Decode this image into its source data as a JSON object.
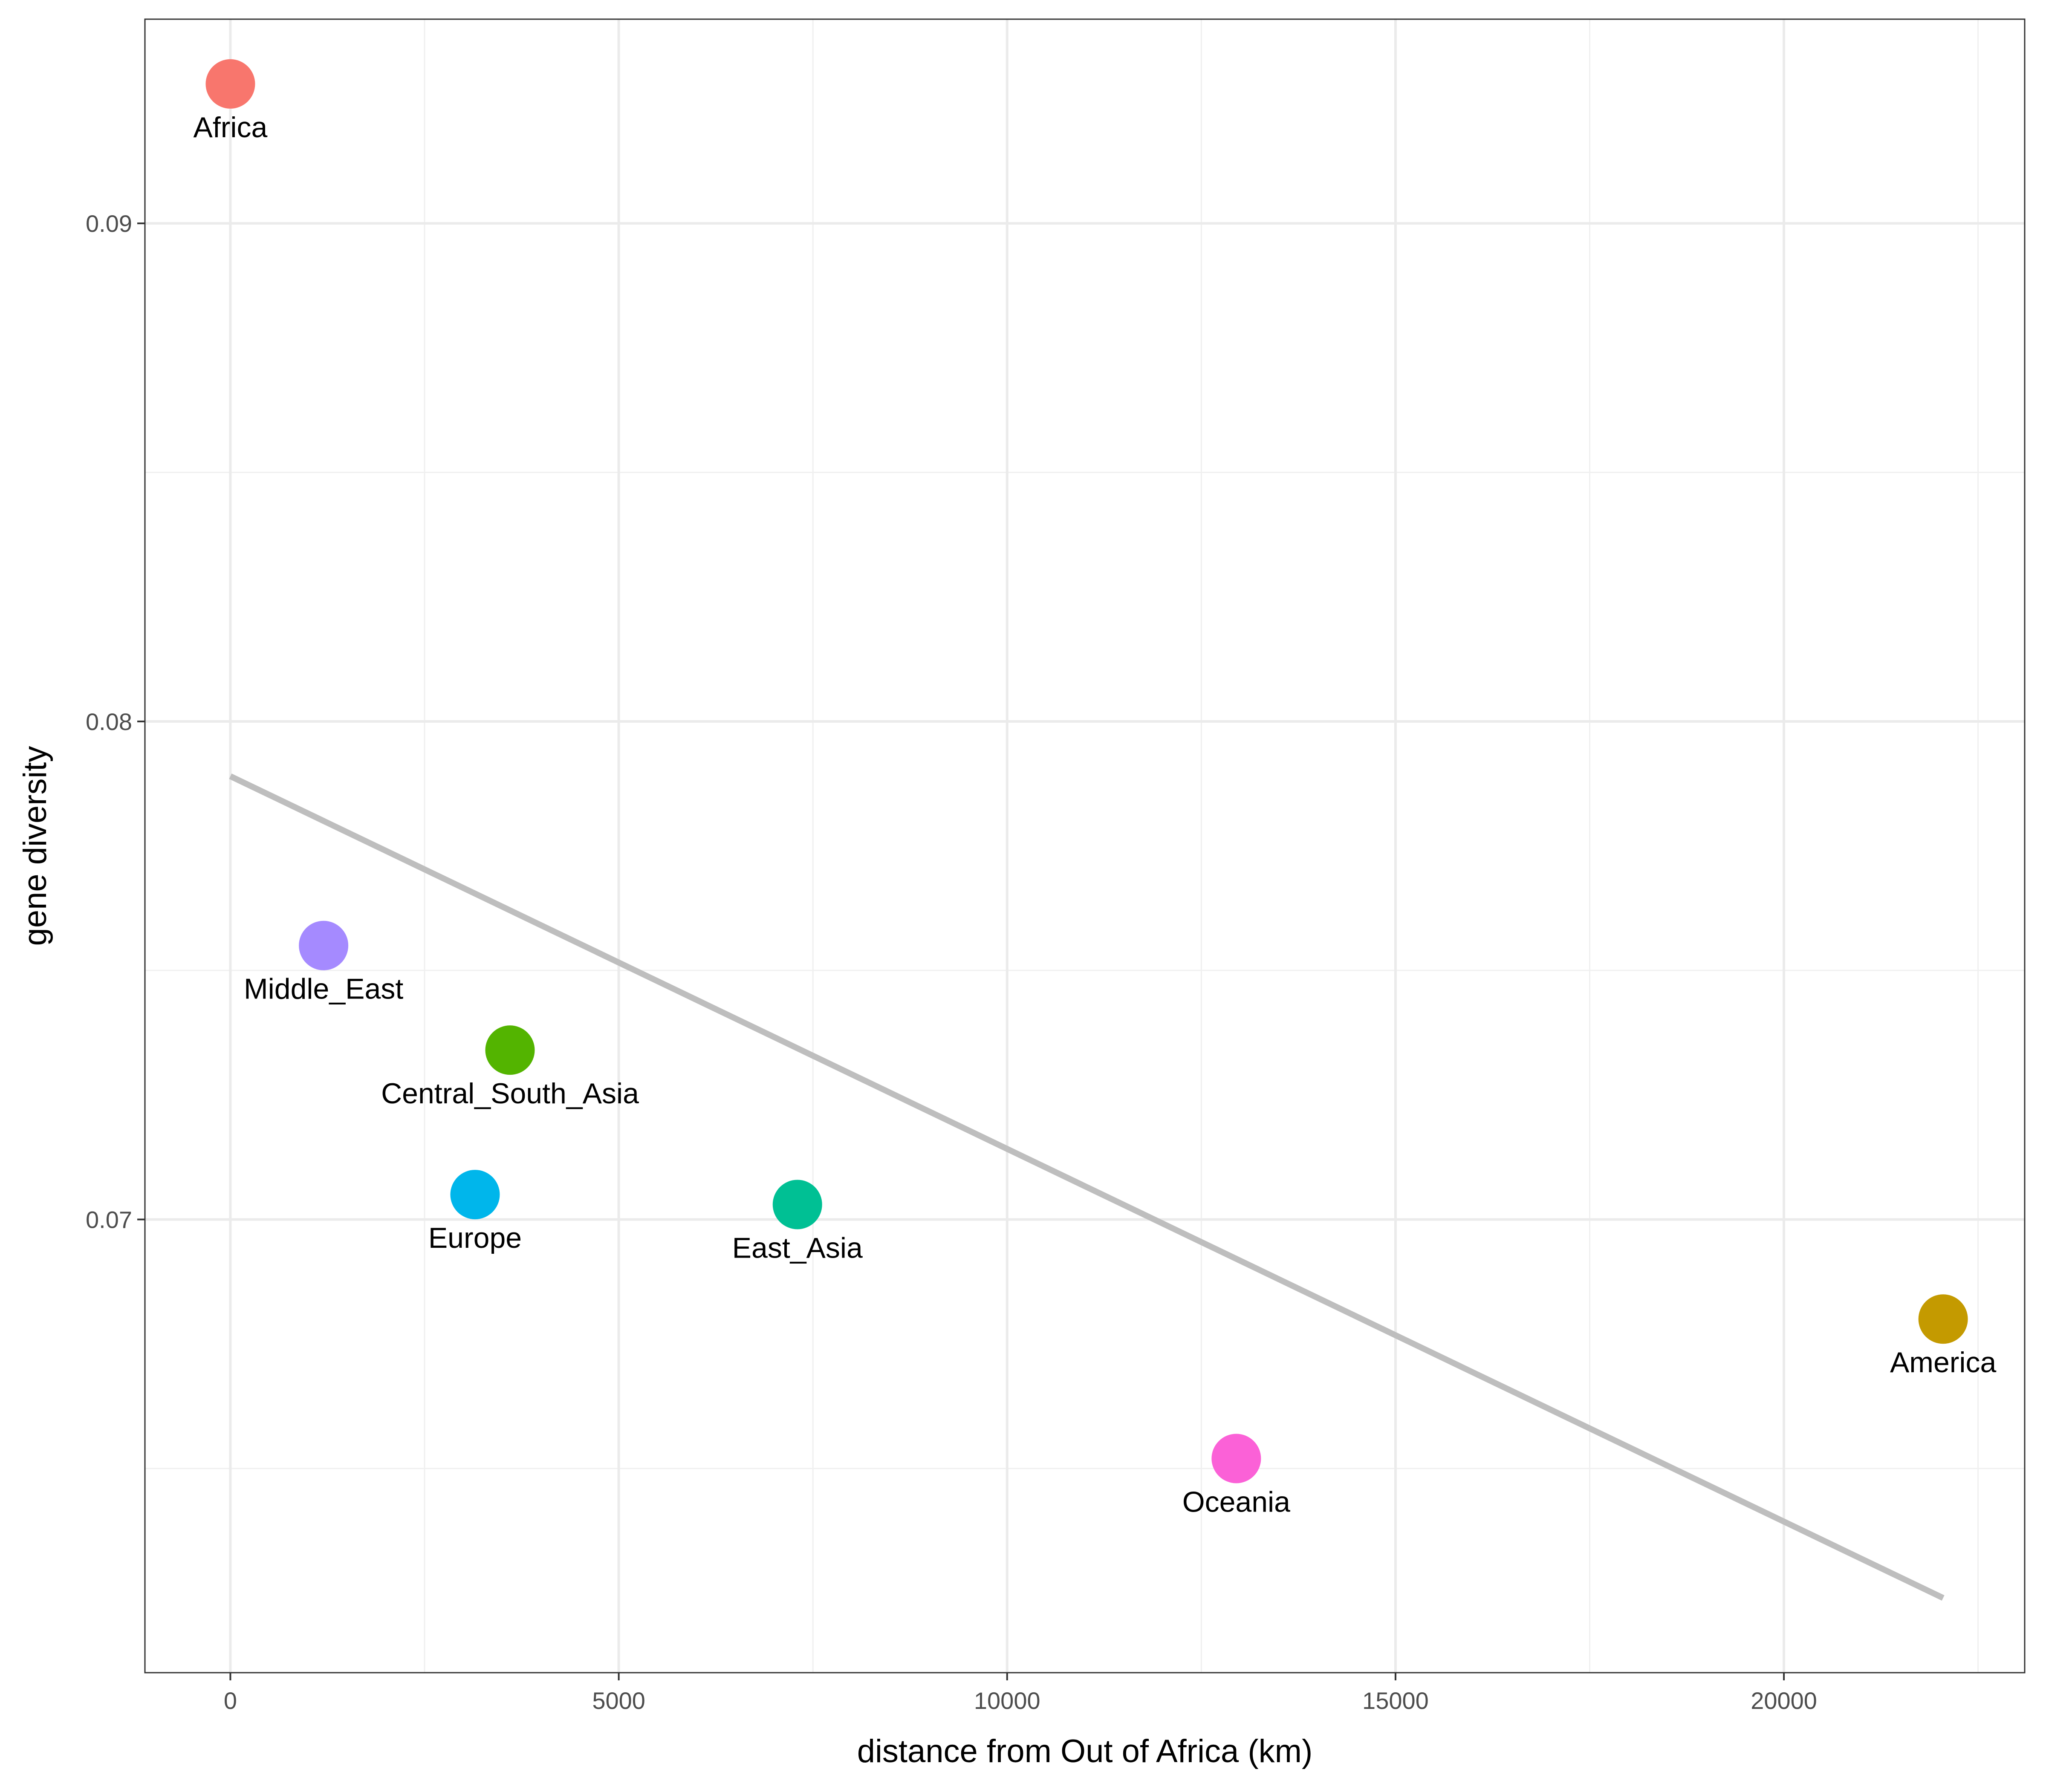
{
  "chart_data": {
    "type": "scatter",
    "title": "",
    "xlabel": "distance from Out of Africa (km)",
    "ylabel": "gene diversity",
    "xlim": [
      -1100,
      23100
    ],
    "ylim": [
      0.0609,
      0.0941
    ],
    "x_ticks": [
      0,
      5000,
      10000,
      15000,
      20000
    ],
    "x_tick_labels": [
      "0",
      "5000",
      "10000",
      "15000",
      "20000"
    ],
    "y_ticks": [
      0.07,
      0.08,
      0.09
    ],
    "y_tick_labels": [
      "0.07",
      "0.08",
      "0.09"
    ],
    "grid": true,
    "legend": "none",
    "points": [
      {
        "label": "Africa",
        "x": 0,
        "y": 0.0928,
        "color": "#F8766D"
      },
      {
        "label": "Middle_East",
        "x": 1200,
        "y": 0.0755,
        "color": "#A58AFF"
      },
      {
        "label": "Central_South_Asia",
        "x": 3600,
        "y": 0.0734,
        "color": "#53B400"
      },
      {
        "label": "Europe",
        "x": 3150,
        "y": 0.0705,
        "color": "#00B6EB"
      },
      {
        "label": "East_Asia",
        "x": 7300,
        "y": 0.0703,
        "color": "#00C094"
      },
      {
        "label": "Oceania",
        "x": 12950,
        "y": 0.0652,
        "color": "#FB61D7"
      },
      {
        "label": "America",
        "x": 22050,
        "y": 0.068,
        "color": "#C49A00"
      }
    ],
    "trend_line": {
      "x": [
        0,
        22050
      ],
      "y": [
        0.0789,
        0.0624
      ],
      "color": "#BEBEBE"
    }
  }
}
